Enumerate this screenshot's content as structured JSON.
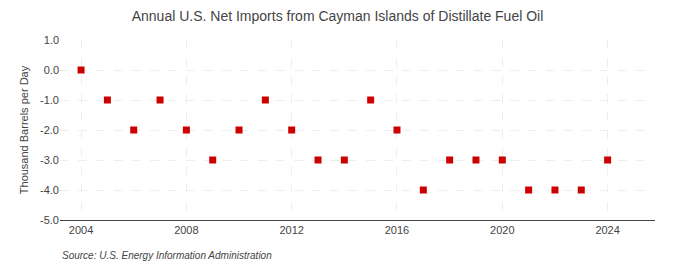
{
  "chart_data": {
    "type": "scatter",
    "title": "Annual U.S. Net Imports from Cayman Islands of Distillate Fuel Oil",
    "ylabel": "Thousand Barrels per Day",
    "source": "Source: U.S. Energy Information Administration",
    "x": [
      2004,
      2005,
      2006,
      2007,
      2008,
      2009,
      2010,
      2011,
      2012,
      2013,
      2014,
      2015,
      2016,
      2017,
      2018,
      2019,
      2020,
      2021,
      2022,
      2023,
      2024
    ],
    "values": [
      0,
      -1,
      -2,
      -1,
      -2,
      -3,
      -2,
      -1,
      -2,
      -3,
      -3,
      -1,
      -2,
      -4,
      -3,
      -3,
      -3,
      -4,
      -4,
      -4,
      -3
    ],
    "color": "#cc0000",
    "marker": "square",
    "xlim": [
      2003.2,
      2025.8
    ],
    "xticks": [
      2004,
      2008,
      2012,
      2016,
      2020,
      2024
    ],
    "ylim": [
      -5.0,
      1.0
    ],
    "yticks": [
      {
        "value": 1.0,
        "label": "1.0"
      },
      {
        "value": 0.0,
        "label": "0.0"
      },
      {
        "value": -1.0,
        "label": "-1.0"
      },
      {
        "value": -2.0,
        "label": "-2.0"
      },
      {
        "value": -3.0,
        "label": "-3.0"
      },
      {
        "value": -4.0,
        "label": "-4.0"
      },
      {
        "value": -5.0,
        "label": "-5.0"
      }
    ],
    "grid": true
  }
}
